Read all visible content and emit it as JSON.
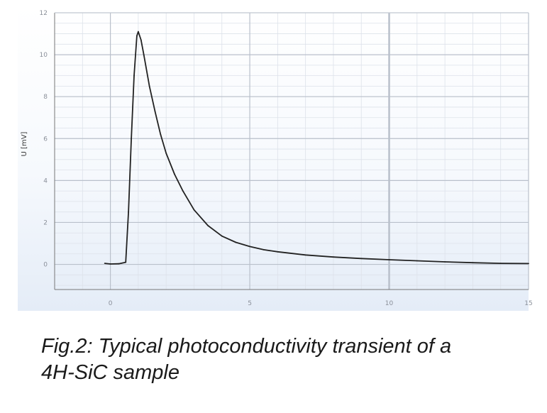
{
  "chart_data": {
    "type": "line",
    "title": "",
    "xlabel": "",
    "ylabel": "U [mV]",
    "xlim": [
      -2,
      15
    ],
    "ylim": [
      -1.2,
      12
    ],
    "x_ticks": [
      0,
      5,
      10,
      15
    ],
    "x_tick_labels": [
      "0",
      "5",
      "10",
      "15"
    ],
    "y_ticks": [
      0,
      2,
      4,
      6,
      8,
      10,
      12
    ],
    "y_tick_labels": [
      "0",
      "2",
      "4",
      "6",
      "8",
      "10",
      "12"
    ],
    "grid": true,
    "series": [
      {
        "name": "",
        "color": "#222222",
        "x": [
          -0.2,
          0.0,
          0.3,
          0.55,
          0.65,
          0.75,
          0.85,
          0.95,
          1.0,
          1.1,
          1.2,
          1.4,
          1.6,
          1.8,
          2.0,
          2.3,
          2.6,
          3.0,
          3.5,
          4.0,
          4.5,
          5.0,
          5.5,
          6.0,
          7.0,
          8.0,
          9.0,
          10.0,
          11.0,
          12.0,
          13.0,
          14.0,
          15.0
        ],
        "y": [
          0.05,
          0.02,
          0.03,
          0.1,
          2.5,
          6.0,
          9.0,
          10.9,
          11.1,
          10.7,
          10.0,
          8.5,
          7.3,
          6.2,
          5.3,
          4.3,
          3.5,
          2.6,
          1.85,
          1.35,
          1.05,
          0.85,
          0.7,
          0.6,
          0.45,
          0.35,
          0.28,
          0.22,
          0.17,
          0.12,
          0.08,
          0.05,
          0.04
        ]
      }
    ]
  },
  "caption": {
    "line1": "Fig.2: Typical photoconductivity transient of a",
    "line2": "4H-SiC sample"
  }
}
